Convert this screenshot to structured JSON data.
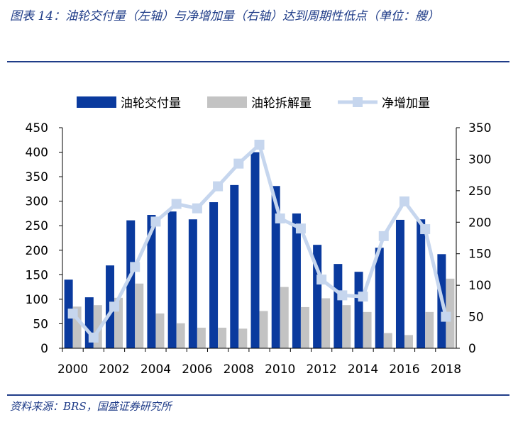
{
  "title": "图表 14：油轮交付量（左轴）与净增加量（右轴）达到周期性低点（单位：艘）",
  "source": "资料来源：BRS，国盛证券研究所",
  "colors": {
    "deliveries": "#0a3a9e",
    "scrapping": "#c3c3c3",
    "net": "#c6d6ee",
    "accent": "#1f3c88"
  },
  "chart_data": {
    "type": "bar",
    "categories": [
      "2000",
      "2001",
      "2002",
      "2003",
      "2004",
      "2005",
      "2006",
      "2007",
      "2008",
      "2009",
      "2010",
      "2011",
      "2012",
      "2013",
      "2014",
      "2015",
      "2016",
      "2017",
      "2018"
    ],
    "x_tick_labels": [
      "2000",
      "2002",
      "2004",
      "2006",
      "2008",
      "2010",
      "2012",
      "2014",
      "2016",
      "2018"
    ],
    "series": [
      {
        "name": "油轮交付量",
        "type": "bar",
        "axis": "left",
        "values": [
          140,
          104,
          169,
          261,
          272,
          279,
          263,
          298,
          333,
          400,
          331,
          275,
          211,
          172,
          156,
          205,
          262,
          263,
          192
        ]
      },
      {
        "name": "油轮拆解量",
        "type": "bar",
        "axis": "left",
        "values": [
          85,
          88,
          103,
          132,
          71,
          51,
          42,
          42,
          40,
          76,
          125,
          84,
          102,
          88,
          74,
          31,
          27,
          74,
          142
        ]
      },
      {
        "name": "净增加量",
        "type": "line",
        "axis": "right",
        "values": [
          55,
          17,
          66,
          129,
          201,
          229,
          222,
          257,
          293,
          323,
          206,
          190,
          109,
          84,
          82,
          178,
          233,
          189,
          50
        ]
      }
    ],
    "y_left": {
      "ylim": [
        0,
        450
      ],
      "ticks": [
        "0",
        "50",
        "100",
        "150",
        "200",
        "250",
        "300",
        "350",
        "400",
        "450"
      ]
    },
    "y_right": {
      "ylim": [
        0,
        350
      ],
      "ticks": [
        "0",
        "50",
        "100",
        "150",
        "200",
        "250",
        "300",
        "350"
      ]
    },
    "legend_position": "top",
    "grid": false
  }
}
